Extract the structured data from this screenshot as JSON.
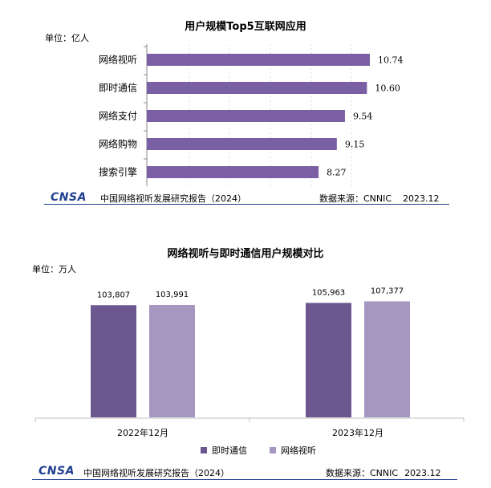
{
  "colors": {
    "bar_primary": "#7b5fa4",
    "bar_dark": "#6c578e",
    "bar_light": "#a697c0",
    "logo": "#1f3f8f",
    "axis": "#888888"
  },
  "chart_data": [
    {
      "type": "bar",
      "orientation": "horizontal",
      "title": "用户规模Top5互联网应用",
      "unit": "单位：亿人",
      "categories": [
        "网络视听",
        "即时通信",
        "网络支付",
        "网络购物",
        "搜索引擎"
      ],
      "values": [
        10.74,
        10.6,
        9.54,
        9.15,
        8.27
      ],
      "value_labels": [
        "10.74",
        "10.60",
        "9.54",
        "9.15",
        "8.27"
      ],
      "xlim": [
        0,
        12
      ],
      "grid": false
    },
    {
      "type": "bar",
      "orientation": "vertical",
      "title": "网络视听与即时通信用户规模对比",
      "unit": "单位：万人",
      "categories": [
        "2022年12月",
        "2023年12月"
      ],
      "series": [
        {
          "name": "即时通信",
          "values": [
            103807,
            105963
          ],
          "labels": [
            "103,807",
            "105,963"
          ]
        },
        {
          "name": "网络视听",
          "values": [
            103991,
            107377
          ],
          "labels": [
            "103,991",
            "107,377"
          ]
        }
      ],
      "ylim": [
        0,
        130000
      ],
      "legend": "bottom"
    }
  ],
  "footer1": {
    "logo": "CNSA",
    "report": "中国网络视听发展研究报告",
    "year": "（2024）",
    "source_label": "数据来源：CNNIC",
    "date": "2023.12"
  },
  "footer2": {
    "logo": "CNSA",
    "report": "中国网络视听发展研究报告",
    "year": "（2024）",
    "source_label": "数据来源：CNNIC",
    "date": "2023.12"
  }
}
